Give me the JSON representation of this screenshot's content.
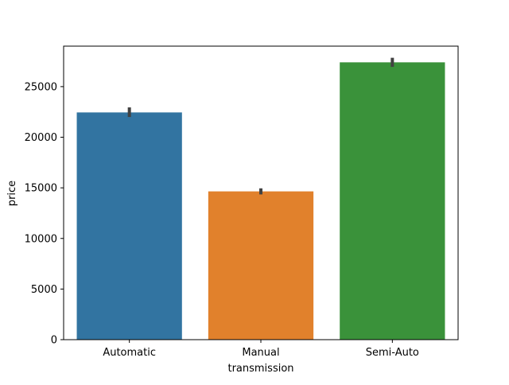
{
  "chart_data": {
    "type": "bar",
    "title": "",
    "xlabel": "transmission",
    "ylabel": "price",
    "categories": [
      "Automatic",
      "Manual",
      "Semi-Auto"
    ],
    "values": [
      22450,
      14650,
      27400
    ],
    "error_bars": [
      {
        "low": 22000,
        "high": 22950
      },
      {
        "low": 14350,
        "high": 14950
      },
      {
        "low": 26950,
        "high": 27850
      }
    ],
    "colors": [
      "#3274a1",
      "#e1812c",
      "#3a923a"
    ],
    "error_color": "#424242",
    "ylim": [
      0,
      29000
    ],
    "yticks": [
      0,
      5000,
      10000,
      15000,
      20000,
      25000
    ],
    "ytick_labels": [
      "0",
      "5000",
      "10000",
      "15000",
      "20000",
      "25000"
    ],
    "grid": false,
    "legend": "none"
  }
}
